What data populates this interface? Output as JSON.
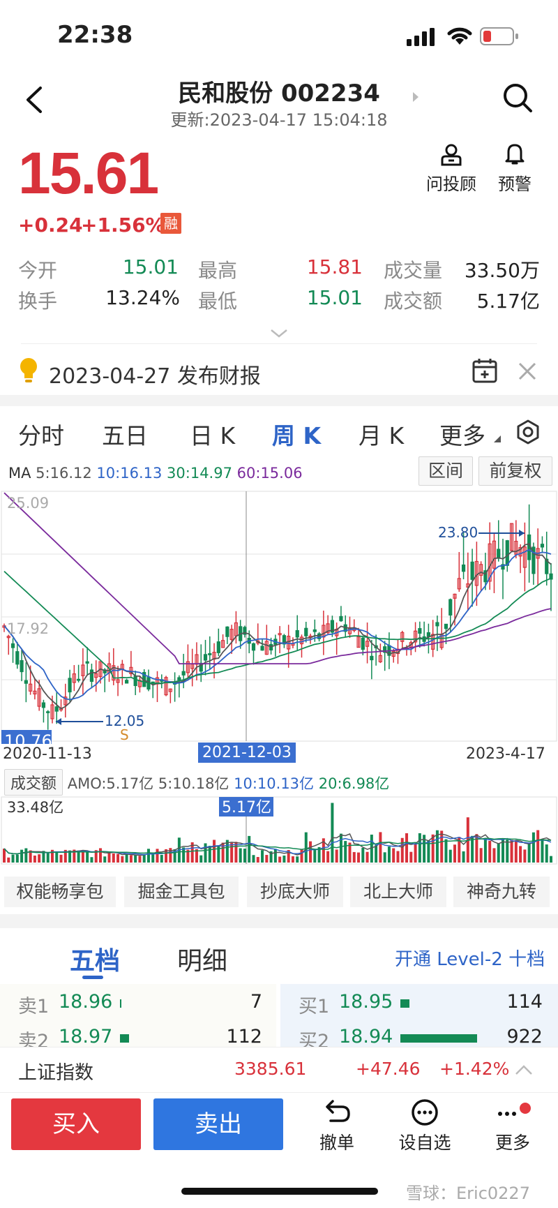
{
  "status": {
    "time": "22:38"
  },
  "header": {
    "title": "民和股份 002234",
    "update": "更新:2023-04-17 15:04:18"
  },
  "quote": {
    "price": "15.61",
    "change": "+0.24",
    "change_pct": "+1.56%",
    "margin_badge": "融",
    "advisor": "问投顾",
    "alert": "预警",
    "stats": {
      "open_label": "今开",
      "open": "15.01",
      "high_label": "最高",
      "high": "15.81",
      "volume_label": "成交量",
      "volume": "33.50万",
      "turnover_label": "换手",
      "turnover": "13.24%",
      "low_label": "最低",
      "low": "15.01",
      "amount_label": "成交额",
      "amount": "5.17亿"
    }
  },
  "notice": {
    "text": "2023-04-27 发布财报"
  },
  "ktabs": [
    "分时",
    "五日",
    "日 K",
    "周 K",
    "月 K",
    "更多"
  ],
  "ma": {
    "label": "MA",
    "ma5": "5:16.12",
    "ma10": "10:16.13",
    "ma30": "30:14.97",
    "ma60": "60:15.06"
  },
  "chart_buttons": {
    "range": "区间",
    "adjust": "前复权"
  },
  "chart_data": {
    "type": "candlestick",
    "period": "weekly",
    "y_labels": [
      "25.09",
      "17.92",
      "10.76"
    ],
    "x_labels": [
      "2020-11-13",
      "2021-12-03",
      "2023-4-17"
    ],
    "max_marker": "23.80",
    "min_marker": "12.05",
    "signal_marker": "S",
    "ylim": [
      10.76,
      25.09
    ],
    "ma5_color": "#555555",
    "ma10_color": "#2e64c7",
    "ma30_color": "#138a55",
    "ma60_color": "#7a2a9c",
    "up_color": "#d8313a",
    "down_color": "#138a55",
    "volume": {
      "title": "成交额",
      "amo": "AMO:5.17亿",
      "ma5": "5:10.18亿",
      "ma10": "10:10.13亿",
      "ma20": "20:6.98亿",
      "max_label": "33.48亿",
      "cursor_label": "5.17亿"
    }
  },
  "tools": [
    "权能畅享包",
    "掘金工具包",
    "抄底大师",
    "北上大师",
    "神奇九转"
  ],
  "orderbook": {
    "tab_five": "五档",
    "tab_detail": "明细",
    "level2": "开通 Level-2 十档",
    "sell": [
      {
        "label": "卖1",
        "price": "18.96",
        "qty": "7",
        "bar": 0.01
      },
      {
        "label": "卖2",
        "price": "18.97",
        "qty": "112",
        "bar": 0.12
      }
    ],
    "buy": [
      {
        "label": "买1",
        "price": "18.95",
        "qty": "114",
        "bar": 0.12
      },
      {
        "label": "买2",
        "price": "18.94",
        "qty": "922",
        "bar": 1.0
      }
    ]
  },
  "index": {
    "name": "上证指数",
    "value": "3385.61",
    "change": "+47.46",
    "pct": "+1.42%"
  },
  "bottom": {
    "buy": "买入",
    "sell": "卖出",
    "cancel": "撤单",
    "watch": "设自选",
    "more": "更多"
  },
  "watermark": "雪球：Eric0227"
}
